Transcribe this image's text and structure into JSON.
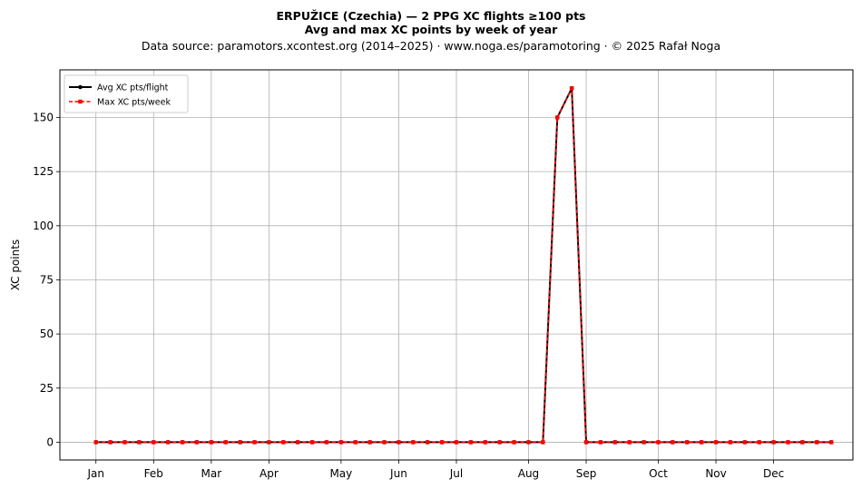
{
  "chart_data": {
    "type": "line",
    "title": "ERPUŽICE (Czechia)  —  2 PPG XC flights ≥100 pts",
    "subtitle": "Avg and max XC points by week of year",
    "source_note": "Data source: paramotors.xcontest.org (2014–2025)  ·  www.noga.es/paramotoring  ·  © 2025 Rafał Noga",
    "xlabel": "",
    "ylabel": "XC points",
    "xlim": [
      -1.5,
      53.5
    ],
    "ylim": [
      -8.2,
      172
    ],
    "y_ticks": [
      0,
      25,
      50,
      75,
      100,
      125,
      150
    ],
    "x_ticks": [
      {
        "label": "Jan",
        "week": 1
      },
      {
        "label": "Feb",
        "week": 5
      },
      {
        "label": "Mar",
        "week": 9
      },
      {
        "label": "Apr",
        "week": 13
      },
      {
        "label": "May",
        "week": 18
      },
      {
        "label": "Jun",
        "week": 22
      },
      {
        "label": "Jul",
        "week": 26
      },
      {
        "label": "Aug",
        "week": 31
      },
      {
        "label": "Sep",
        "week": 35
      },
      {
        "label": "Oct",
        "week": 40
      },
      {
        "label": "Nov",
        "week": 44
      },
      {
        "label": "Dec",
        "week": 48
      }
    ],
    "grid": true,
    "legend_position": "top-left",
    "x": [
      1,
      2,
      3,
      4,
      5,
      6,
      7,
      8,
      9,
      10,
      11,
      12,
      13,
      14,
      15,
      16,
      17,
      18,
      19,
      20,
      21,
      22,
      23,
      24,
      25,
      26,
      27,
      28,
      29,
      30,
      31,
      32,
      33,
      34,
      35,
      36,
      37,
      38,
      39,
      40,
      41,
      42,
      43,
      44,
      45,
      46,
      47,
      48,
      49,
      50,
      51,
      52
    ],
    "series": [
      {
        "name": "Avg XC pts/flight",
        "color": "#000000",
        "style": "solid",
        "marker": "circle",
        "values": [
          0,
          0,
          0,
          0,
          0,
          0,
          0,
          0,
          0,
          0,
          0,
          0,
          0,
          0,
          0,
          0,
          0,
          0,
          0,
          0,
          0,
          0,
          0,
          0,
          0,
          0,
          0,
          0,
          0,
          0,
          0,
          0,
          150,
          163.5,
          0,
          0,
          0,
          0,
          0,
          0,
          0,
          0,
          0,
          0,
          0,
          0,
          0,
          0,
          0,
          0,
          0,
          0
        ]
      },
      {
        "name": "Max XC pts/week",
        "color": "#ff0000",
        "style": "dashed",
        "marker": "square",
        "values": [
          0,
          0,
          0,
          0,
          0,
          0,
          0,
          0,
          0,
          0,
          0,
          0,
          0,
          0,
          0,
          0,
          0,
          0,
          0,
          0,
          0,
          0,
          0,
          0,
          0,
          0,
          0,
          0,
          0,
          0,
          0,
          0,
          150,
          163.5,
          0,
          0,
          0,
          0,
          0,
          0,
          0,
          0,
          0,
          0,
          0,
          0,
          0,
          0,
          0,
          0,
          0,
          0
        ]
      }
    ]
  }
}
